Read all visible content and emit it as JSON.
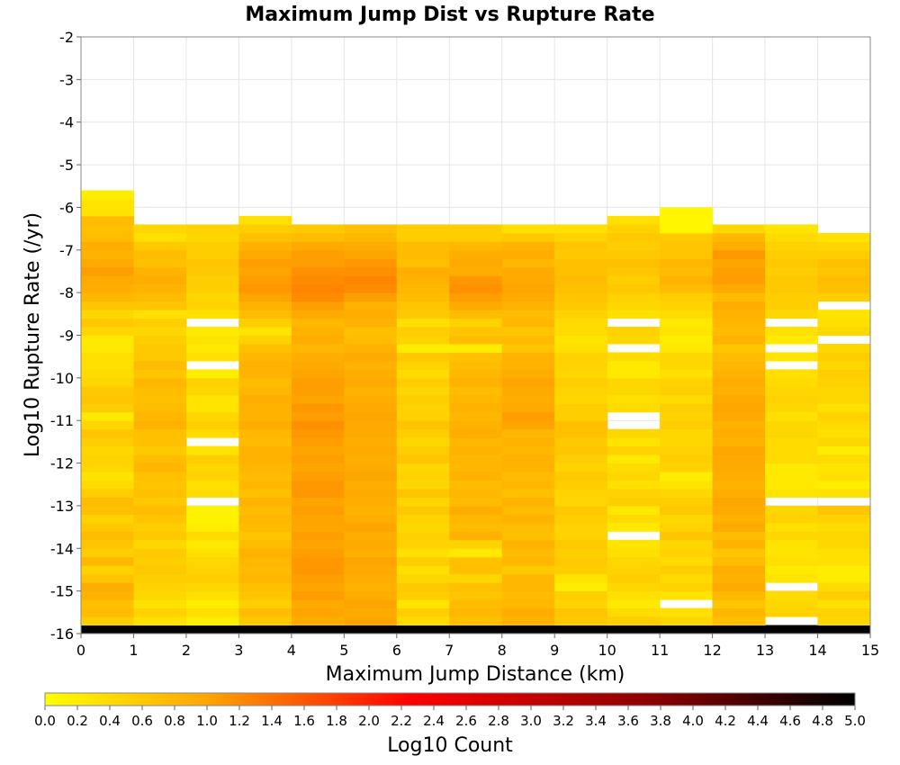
{
  "chart_data": {
    "type": "heatmap",
    "title": "Maximum Jump Dist vs Rupture Rate",
    "xlabel": "Maximum Jump Distance (km)",
    "ylabel": "Log10 Rupture Rate (/yr)",
    "xlim": [
      0,
      15
    ],
    "ylim": [
      -16,
      -2
    ],
    "x_ticks": [
      "0",
      "1",
      "2",
      "3",
      "4",
      "5",
      "6",
      "7",
      "8",
      "9",
      "10",
      "11",
      "12",
      "13",
      "14",
      "15"
    ],
    "y_ticks": [
      "-2",
      "-3",
      "-4",
      "-5",
      "-6",
      "-7",
      "-8",
      "-9",
      "-10",
      "-11",
      "-12",
      "-13",
      "-14",
      "-15",
      "-16"
    ],
    "grid": true,
    "x_bin_width": 1,
    "y_bin_width": 0.2,
    "y_bin_start": -16,
    "colorbar": {
      "label": "Log10 Count",
      "min": 0.0,
      "max": 5.0,
      "ticks": [
        "0.0",
        "0.2",
        "0.4",
        "0.6",
        "0.8",
        "1.0",
        "1.2",
        "1.4",
        "1.6",
        "1.8",
        "2.0",
        "2.2",
        "2.4",
        "2.6",
        "2.8",
        "3.0",
        "3.2",
        "3.4",
        "3.6",
        "3.8",
        "4.0",
        "4.2",
        "4.4",
        "4.6",
        "4.8",
        "5.0"
      ],
      "colors": [
        "#ffff00",
        "#ffa500",
        "#ff0000",
        "#8b0000",
        "#000000"
      ]
    },
    "z": [
      [
        5.0,
        5.0,
        5.0,
        5.0,
        5.0,
        5.0,
        5.0,
        5.0,
        5.0,
        5.0,
        5.0,
        5.0,
        5.0,
        5.0,
        5.0
      ],
      [
        0.55,
        0.35,
        0.2,
        0.6,
        0.9,
        1.0,
        0.4,
        0.7,
        0.85,
        0.6,
        0.55,
        0.45,
        0.7,
        null,
        0.45
      ],
      [
        0.75,
        0.5,
        0.35,
        0.75,
        1.0,
        0.95,
        0.55,
        0.8,
        0.9,
        0.65,
        0.4,
        0.35,
        0.8,
        0.5,
        0.5
      ],
      [
        0.7,
        0.35,
        0.2,
        0.55,
        0.95,
        1.0,
        0.3,
        0.75,
        0.8,
        0.5,
        0.25,
        null,
        0.65,
        0.45,
        0.35
      ],
      [
        0.85,
        0.45,
        0.35,
        0.65,
        1.05,
        0.9,
        0.55,
        0.65,
        0.75,
        0.55,
        0.35,
        0.3,
        0.8,
        0.4,
        0.55
      ],
      [
        0.9,
        0.5,
        0.45,
        0.7,
        1.0,
        0.85,
        0.6,
        0.7,
        0.8,
        0.2,
        0.45,
        0.5,
        0.95,
        null,
        0.4
      ],
      [
        0.65,
        0.55,
        0.55,
        0.8,
        1.05,
        0.9,
        0.45,
        0.45,
        0.8,
        0.3,
        0.55,
        0.4,
        0.85,
        0.3,
        0.2
      ],
      [
        0.5,
        0.6,
        0.5,
        0.75,
        1.1,
        0.95,
        0.35,
        0.7,
        0.6,
        0.55,
        0.5,
        0.55,
        0.9,
        0.25,
        0.2
      ],
      [
        0.8,
        0.55,
        0.45,
        0.8,
        1.1,
        1.0,
        0.55,
        0.7,
        0.8,
        0.6,
        0.45,
        0.4,
        0.75,
        0.35,
        0.35
      ],
      [
        0.55,
        0.6,
        0.35,
        0.85,
        1.05,
        0.9,
        0.35,
        0.25,
        0.75,
        0.55,
        0.35,
        0.5,
        0.65,
        0.3,
        0.35
      ],
      [
        0.65,
        0.45,
        0.25,
        0.75,
        1.0,
        0.95,
        0.5,
        0.5,
        0.85,
        0.6,
        0.3,
        0.45,
        0.85,
        0.3,
        0.45
      ],
      [
        0.75,
        0.6,
        0.4,
        0.65,
        1.05,
        0.9,
        0.5,
        0.85,
        0.7,
        0.5,
        null,
        0.65,
        0.75,
        0.45,
        0.45
      ],
      [
        0.6,
        0.55,
        0.2,
        0.75,
        1.0,
        1.0,
        0.45,
        0.75,
        0.75,
        0.5,
        0.25,
        0.5,
        0.95,
        0.35,
        0.4
      ],
      [
        0.5,
        0.65,
        0.15,
        0.8,
        1.0,
        0.9,
        0.5,
        0.8,
        0.85,
        0.55,
        0.4,
        0.45,
        0.85,
        0.5,
        0.5
      ],
      [
        0.7,
        0.75,
        0.15,
        0.75,
        1.05,
        0.85,
        0.6,
        0.9,
        0.75,
        0.6,
        0.25,
        0.6,
        0.95,
        0.45,
        0.65
      ],
      [
        0.75,
        0.6,
        null,
        0.85,
        1.0,
        0.9,
        0.45,
        0.75,
        0.85,
        0.45,
        0.55,
        0.55,
        1.0,
        null,
        null
      ],
      [
        0.55,
        0.7,
        0.4,
        0.7,
        1.1,
        0.95,
        0.65,
        0.8,
        0.7,
        0.5,
        0.5,
        0.45,
        0.9,
        0.3,
        0.35
      ],
      [
        0.4,
        0.65,
        0.35,
        0.8,
        1.1,
        0.9,
        0.45,
        0.75,
        0.8,
        0.55,
        0.35,
        0.3,
        0.85,
        0.25,
        0.2
      ],
      [
        0.3,
        0.7,
        0.5,
        0.75,
        1.05,
        1.0,
        0.5,
        0.85,
        0.75,
        0.6,
        0.45,
        0.2,
        0.9,
        0.25,
        0.35
      ],
      [
        0.45,
        0.8,
        0.45,
        0.8,
        1.0,
        0.95,
        0.45,
        0.8,
        0.85,
        0.5,
        0.4,
        0.5,
        0.95,
        0.25,
        0.3
      ],
      [
        0.5,
        0.75,
        0.55,
        0.85,
        1.05,
        0.9,
        0.65,
        0.8,
        0.85,
        0.55,
        0.25,
        0.55,
        0.95,
        0.4,
        0.4
      ],
      [
        0.45,
        0.6,
        0.3,
        0.85,
        1.0,
        0.95,
        0.55,
        0.85,
        0.8,
        0.65,
        0.5,
        0.5,
        1.0,
        0.4,
        0.2
      ],
      [
        0.55,
        0.7,
        null,
        0.75,
        1.05,
        0.9,
        0.45,
        0.8,
        0.85,
        0.6,
        0.3,
        0.45,
        0.85,
        0.4,
        0.45
      ],
      [
        0.65,
        0.7,
        0.4,
        0.8,
        1.1,
        0.95,
        0.55,
        0.9,
        0.8,
        0.7,
        0.45,
        0.45,
        0.9,
        0.45,
        0.35
      ],
      [
        0.45,
        0.85,
        0.55,
        0.9,
        1.15,
        0.95,
        0.65,
        0.85,
        1.0,
        0.7,
        null,
        0.55,
        0.85,
        0.45,
        0.4
      ],
      [
        0.25,
        0.8,
        0.45,
        0.85,
        1.05,
        1.0,
        0.5,
        0.8,
        1.05,
        0.55,
        null,
        0.5,
        0.95,
        0.35,
        0.5
      ],
      [
        0.55,
        0.75,
        0.3,
        0.85,
        1.1,
        0.95,
        0.5,
        0.85,
        0.95,
        0.55,
        0.4,
        0.55,
        1.0,
        0.45,
        0.35
      ],
      [
        0.65,
        0.7,
        0.3,
        0.9,
        1.0,
        0.9,
        0.55,
        0.8,
        0.9,
        0.45,
        0.35,
        0.4,
        0.95,
        0.5,
        0.45
      ],
      [
        0.6,
        0.75,
        0.45,
        0.8,
        1.05,
        0.85,
        0.45,
        0.75,
        0.95,
        0.5,
        0.45,
        0.55,
        0.85,
        0.45,
        0.45
      ],
      [
        0.45,
        0.8,
        0.5,
        0.75,
        1.05,
        0.95,
        0.55,
        0.85,
        1.0,
        0.55,
        0.45,
        0.5,
        0.9,
        0.4,
        0.5
      ],
      [
        0.4,
        0.65,
        0.2,
        0.85,
        1.0,
        0.9,
        0.4,
        0.8,
        0.9,
        0.45,
        0.25,
        0.35,
        0.85,
        0.35,
        0.55
      ],
      [
        0.35,
        0.75,
        null,
        0.85,
        0.95,
        0.85,
        0.5,
        0.75,
        0.85,
        0.5,
        0.25,
        0.45,
        0.8,
        null,
        0.45
      ],
      [
        0.35,
        0.6,
        0.35,
        0.8,
        0.9,
        0.95,
        0.6,
        0.7,
        0.85,
        0.5,
        0.4,
        0.45,
        0.75,
        0.3,
        0.55
      ],
      [
        0.25,
        0.6,
        0.25,
        0.7,
        0.8,
        0.85,
        0.2,
        0.2,
        0.65,
        0.35,
        null,
        0.25,
        0.65,
        null,
        0.45
      ],
      [
        0.25,
        0.55,
        0.3,
        0.5,
        0.9,
        0.75,
        0.5,
        0.75,
        0.75,
        0.3,
        0.45,
        0.2,
        0.85,
        0.25,
        null
      ],
      [
        0.45,
        0.45,
        0.25,
        0.3,
        0.85,
        0.7,
        0.55,
        0.65,
        0.65,
        0.4,
        0.5,
        0.3,
        0.75,
        0.35,
        0.45
      ],
      [
        0.6,
        0.55,
        null,
        0.55,
        0.8,
        0.85,
        0.35,
        0.5,
        0.8,
        0.4,
        null,
        0.25,
        0.8,
        null,
        0.35
      ],
      [
        0.45,
        0.35,
        0.35,
        0.75,
        0.95,
        0.9,
        0.6,
        0.75,
        0.75,
        0.5,
        0.35,
        0.4,
        0.85,
        0.45,
        0.3
      ],
      [
        0.65,
        0.65,
        0.5,
        0.85,
        1.05,
        0.85,
        0.65,
        0.95,
        0.85,
        0.6,
        0.45,
        0.5,
        0.9,
        0.55,
        null
      ],
      [
        0.8,
        0.75,
        0.45,
        1.0,
        1.2,
        1.05,
        0.75,
        1.05,
        0.95,
        0.65,
        0.5,
        0.55,
        0.75,
        0.55,
        0.55
      ],
      [
        0.9,
        0.85,
        0.55,
        1.1,
        1.25,
        1.2,
        0.8,
        1.15,
        1.0,
        0.7,
        0.6,
        0.75,
        0.95,
        0.6,
        0.7
      ],
      [
        0.95,
        0.9,
        0.55,
        1.05,
        1.2,
        1.25,
        0.85,
        1.1,
        0.95,
        0.75,
        0.55,
        0.85,
        1.05,
        0.6,
        0.75
      ],
      [
        1.05,
        0.85,
        0.6,
        1.0,
        1.15,
        1.15,
        0.9,
        0.9,
        0.95,
        0.7,
        0.65,
        0.75,
        1.05,
        0.55,
        0.65
      ],
      [
        0.95,
        0.7,
        0.65,
        1.05,
        1.05,
        1.1,
        0.7,
        0.95,
        0.8,
        0.7,
        0.7,
        0.8,
        1.0,
        0.6,
        0.7
      ],
      [
        0.85,
        0.75,
        0.55,
        0.95,
        1.05,
        1.0,
        0.75,
        0.9,
        0.9,
        0.6,
        0.6,
        0.65,
        1.1,
        0.55,
        0.55
      ],
      [
        0.9,
        0.6,
        0.55,
        0.85,
        0.95,
        0.9,
        0.75,
        0.8,
        0.85,
        0.65,
        0.55,
        0.65,
        0.9,
        0.5,
        0.45
      ],
      [
        0.75,
        0.35,
        0.45,
        0.7,
        0.75,
        0.8,
        0.55,
        0.55,
        0.6,
        0.5,
        0.6,
        0.6,
        0.8,
        0.4,
        0.35
      ],
      [
        0.7,
        0.45,
        0.5,
        0.55,
        0.6,
        0.7,
        0.55,
        0.55,
        0.35,
        0.35,
        0.5,
        0.1,
        0.45,
        0.3,
        null
      ],
      [
        0.75,
        null,
        null,
        0.35,
        null,
        null,
        null,
        null,
        null,
        null,
        0.35,
        0.1,
        null,
        null,
        null
      ],
      [
        0.3,
        null,
        null,
        null,
        null,
        null,
        null,
        null,
        null,
        null,
        null,
        0.1,
        null,
        null,
        null
      ],
      [
        0.3,
        null,
        null,
        null,
        null,
        null,
        null,
        null,
        null,
        null,
        null,
        null,
        null,
        null,
        null
      ],
      [
        0.2,
        null,
        null,
        null,
        null,
        null,
        null,
        null,
        null,
        null,
        null,
        null,
        null,
        null,
        null
      ]
    ]
  }
}
